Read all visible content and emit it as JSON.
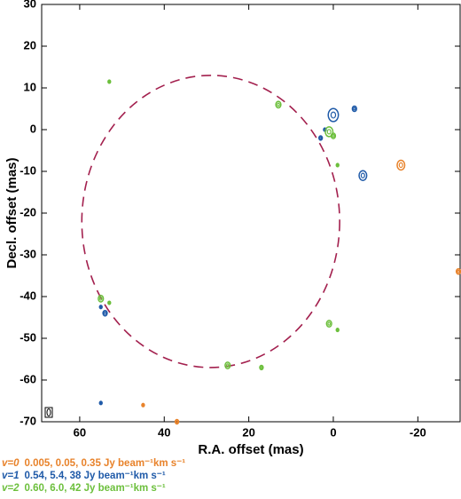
{
  "chart_data": {
    "type": "contour-map",
    "xlabel": "R.A. offset  (mas)",
    "ylabel": "Decl. offset  (mas)",
    "xlim": [
      69,
      -30
    ],
    "ylim": [
      -70,
      30
    ],
    "xticks": [
      60,
      40,
      20,
      0,
      -20
    ],
    "yticks": [
      -70,
      -60,
      -50,
      -40,
      -30,
      -20,
      -10,
      0,
      10,
      20,
      30
    ],
    "ring": {
      "color": "#a3204e",
      "x": 29,
      "y": -22,
      "rx": 30.5,
      "ry": 35
    },
    "series": [
      {
        "name": "v=0",
        "levels": "0.005, 0.05, 0.35 Jy beam⁻¹km s⁻¹",
        "color": "#e8822a",
        "x": [
          -16,
          -29.6,
          45,
          37
        ],
        "y": [
          -8.5,
          -34,
          -66,
          -70
        ],
        "size": [
          0.9,
          0.5,
          0.3,
          0.4
        ]
      },
      {
        "name": "v=1",
        "levels": "0.54, 5.4, 38 Jy beam⁻¹km s⁻¹",
        "color": "#1f5aa8",
        "x": [
          0,
          -5,
          3,
          2,
          -7,
          54,
          55,
          55
        ],
        "y": [
          3.5,
          5,
          -2,
          0,
          -11,
          -44,
          -42.5,
          -65.5
        ],
        "size": [
          1.2,
          0.5,
          0.4,
          0.3,
          0.9,
          0.5,
          0.3,
          0.3
        ]
      },
      {
        "name": "v=2",
        "levels": "0.60, 6.0, 42 Jy beam⁻¹km s⁻¹",
        "color": "#6cbf3c",
        "x": [
          53,
          13,
          1,
          0,
          -1,
          55,
          53,
          1,
          -1,
          25,
          17
        ],
        "y": [
          11.5,
          6,
          -0.5,
          -1.5,
          -8.5,
          -40.5,
          -41.5,
          -46.5,
          -48,
          -56.5,
          -57
        ],
        "size": [
          0.3,
          0.6,
          0.9,
          0.5,
          0.3,
          0.6,
          0.3,
          0.6,
          0.3,
          0.6,
          0.4
        ]
      }
    ]
  }
}
